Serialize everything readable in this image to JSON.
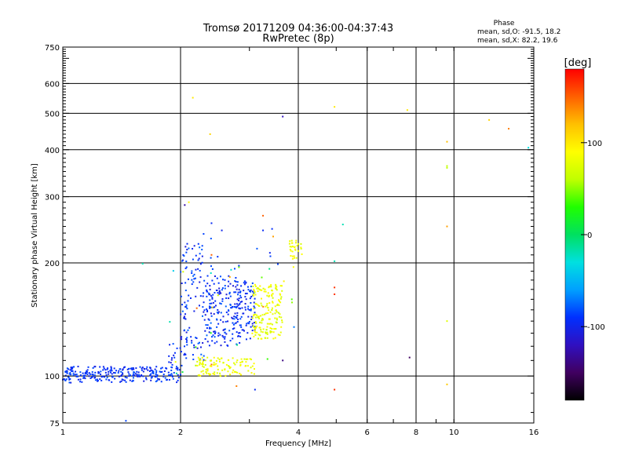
{
  "chart_data": {
    "type": "scatter",
    "title": "Tromsø 20171209 04:36:00-04:37:43",
    "subtitle": "RwPretec (8p)",
    "xlabel": "Frequency [MHz]",
    "ylabel": "Stationary phase Virtual Height [km]",
    "x_scale": "log",
    "y_scale": "log",
    "xlim": [
      1,
      16
    ],
    "ylim": [
      75,
      750
    ],
    "x_ticks": [
      1,
      2,
      4,
      6,
      8,
      10,
      16
    ],
    "y_ticks": [
      75,
      100,
      200,
      300,
      400,
      500,
      600,
      750
    ],
    "grid": true,
    "phase_box": {
      "heading": "Phase",
      "line1": "mean, sd,O: -91.5, 18.2",
      "line2": "mean, sd,X:  82.2, 19.6"
    },
    "colorbar": {
      "label": "[deg]",
      "range": [
        -180,
        180
      ],
      "ticks": [
        -100,
        0,
        100
      ],
      "stops": [
        "#000000",
        "#400060",
        "#3010c0",
        "#0030ff",
        "#00a0ff",
        "#00e0e0",
        "#00e060",
        "#20ff00",
        "#c0ff00",
        "#ffff00",
        "#ffc000",
        "#ff6000",
        "#ff0000"
      ]
    },
    "clusters": [
      {
        "name": "o-low-trace",
        "x": [
          1.0,
          1.98
        ],
        "y": [
          96,
          106
        ],
        "phase": [
          -105,
          -80
        ],
        "n": 260,
        "seed": 11
      },
      {
        "name": "o-ramp",
        "x": [
          1.85,
          2.02
        ],
        "y": [
          100,
          125
        ],
        "phase": [
          -110,
          -80
        ],
        "n": 18,
        "seed": 12
      },
      {
        "name": "o-spread-a",
        "x": [
          2.0,
          2.3
        ],
        "y": [
          110,
          225
        ],
        "phase": [
          -110,
          -75
        ],
        "n": 110,
        "seed": 13
      },
      {
        "name": "o-spread-b",
        "x": [
          2.3,
          2.85
        ],
        "y": [
          120,
          185
        ],
        "phase": [
          -110,
          -75
        ],
        "n": 190,
        "seed": 14
      },
      {
        "name": "o-spread-c",
        "x": [
          2.8,
          3.1
        ],
        "y": [
          125,
          180
        ],
        "phase": [
          -105,
          -80
        ],
        "n": 80,
        "seed": 15
      },
      {
        "name": "o-sparse",
        "x": [
          2.1,
          3.6
        ],
        "y": [
          190,
          250
        ],
        "phase": [
          -100,
          -75
        ],
        "n": 14,
        "seed": 16
      },
      {
        "name": "x-low",
        "x": [
          2.2,
          3.1
        ],
        "y": [
          100,
          112
        ],
        "phase": [
          70,
          95
        ],
        "n": 110,
        "seed": 17
      },
      {
        "name": "x-mid",
        "x": [
          3.05,
          3.65
        ],
        "y": [
          125,
          175
        ],
        "phase": [
          65,
          95
        ],
        "n": 170,
        "seed": 18
      },
      {
        "name": "x-high",
        "x": [
          3.8,
          4.1
        ],
        "y": [
          205,
          230
        ],
        "phase": [
          70,
          95
        ],
        "n": 30,
        "seed": 19
      },
      {
        "name": "mixed-noise",
        "x": [
          1.8,
          4.0
        ],
        "y": [
          100,
          200
        ],
        "phase": [
          -40,
          150
        ],
        "n": 28,
        "seed": 20
      }
    ],
    "isolated_points": [
      {
        "x": 1.45,
        "y": 76,
        "phase": -85
      },
      {
        "x": 1.6,
        "y": 199,
        "phase": -20
      },
      {
        "x": 2.05,
        "y": 285,
        "phase": -130
      },
      {
        "x": 2.1,
        "y": 290,
        "phase": 95
      },
      {
        "x": 2.15,
        "y": 550,
        "phase": 100
      },
      {
        "x": 2.38,
        "y": 440,
        "phase": 110
      },
      {
        "x": 2.4,
        "y": 255,
        "phase": -95
      },
      {
        "x": 2.4,
        "y": 210,
        "phase": 150
      },
      {
        "x": 2.55,
        "y": 244,
        "phase": -100
      },
      {
        "x": 2.78,
        "y": 94,
        "phase": 140
      },
      {
        "x": 3.1,
        "y": 92,
        "phase": -95
      },
      {
        "x": 3.25,
        "y": 267,
        "phase": 150
      },
      {
        "x": 3.25,
        "y": 244,
        "phase": -95
      },
      {
        "x": 3.45,
        "y": 235,
        "phase": 130
      },
      {
        "x": 3.65,
        "y": 490,
        "phase": -120
      },
      {
        "x": 3.65,
        "y": 110,
        "phase": -140
      },
      {
        "x": 3.85,
        "y": 160,
        "phase": 40
      },
      {
        "x": 3.9,
        "y": 135,
        "phase": -70
      },
      {
        "x": 4.95,
        "y": 520,
        "phase": 100
      },
      {
        "x": 4.95,
        "y": 202,
        "phase": -20
      },
      {
        "x": 4.95,
        "y": 172,
        "phase": 165
      },
      {
        "x": 4.95,
        "y": 165,
        "phase": 165
      },
      {
        "x": 4.95,
        "y": 92,
        "phase": 165
      },
      {
        "x": 5.2,
        "y": 253,
        "phase": -20
      },
      {
        "x": 7.6,
        "y": 510,
        "phase": 100
      },
      {
        "x": 7.7,
        "y": 112,
        "phase": -150
      },
      {
        "x": 9.6,
        "y": 420,
        "phase": 120
      },
      {
        "x": 9.6,
        "y": 362,
        "phase": 60
      },
      {
        "x": 9.6,
        "y": 358,
        "phase": 60
      },
      {
        "x": 9.6,
        "y": 250,
        "phase": 130
      },
      {
        "x": 9.6,
        "y": 140,
        "phase": 75
      },
      {
        "x": 9.6,
        "y": 95,
        "phase": 115
      },
      {
        "x": 12.3,
        "y": 480,
        "phase": 110
      },
      {
        "x": 13.8,
        "y": 455,
        "phase": 140
      },
      {
        "x": 15.5,
        "y": 405,
        "phase": -30
      }
    ]
  }
}
